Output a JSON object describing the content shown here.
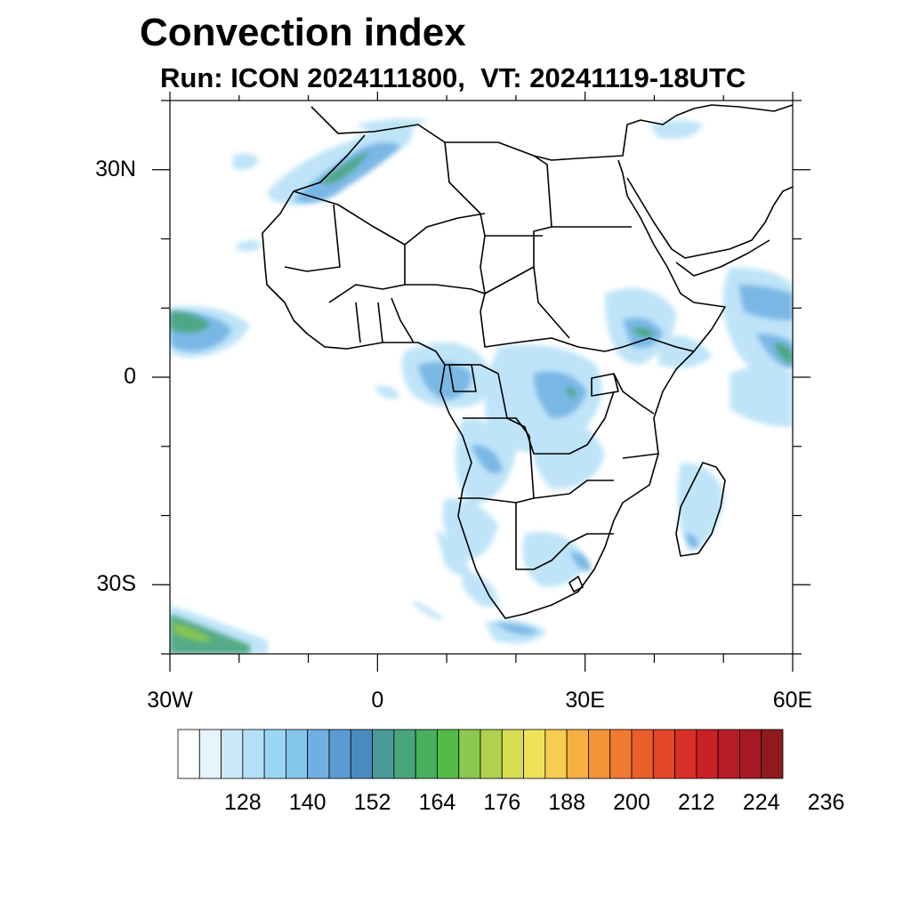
{
  "header": {
    "title": "Convection index",
    "subtitle": "Run: ICON 2024111800,  VT: 20241119-18UTC"
  },
  "map": {
    "lon_range": [
      -30,
      60
    ],
    "lat_range": [
      -40,
      40
    ],
    "lat_ticks": [
      {
        "value": 30,
        "label": "30N"
      },
      {
        "value": 0,
        "label": "0"
      },
      {
        "value": -30,
        "label": "30S"
      }
    ],
    "lon_ticks": [
      {
        "value": -30,
        "label": "30W"
      },
      {
        "value": 0,
        "label": "0"
      },
      {
        "value": 30,
        "label": "30E"
      },
      {
        "value": 60,
        "label": "60E"
      }
    ],
    "field_colors_note": "blue-green shading over convective regions"
  },
  "colorbar": {
    "colors": [
      "#ffffff",
      "#e6f4fc",
      "#cbe8f8",
      "#b4e0f7",
      "#9ad7f5",
      "#84c5ec",
      "#6eb0e2",
      "#5a9cd2",
      "#4a8ac0",
      "#4a9a9a",
      "#48a57c",
      "#46b05c",
      "#55bb48",
      "#8bc84e",
      "#b0d04e",
      "#d8dc50",
      "#f0e15a",
      "#f8cc4e",
      "#f7b043",
      "#f59538",
      "#f07a30",
      "#eb5e2a",
      "#e24527",
      "#d83026",
      "#c82126",
      "#b71c24",
      "#a51a22",
      "#8c1a1e"
    ],
    "labels": [
      "128",
      "140",
      "152",
      "164",
      "176",
      "188",
      "200",
      "212",
      "224",
      "236"
    ]
  }
}
